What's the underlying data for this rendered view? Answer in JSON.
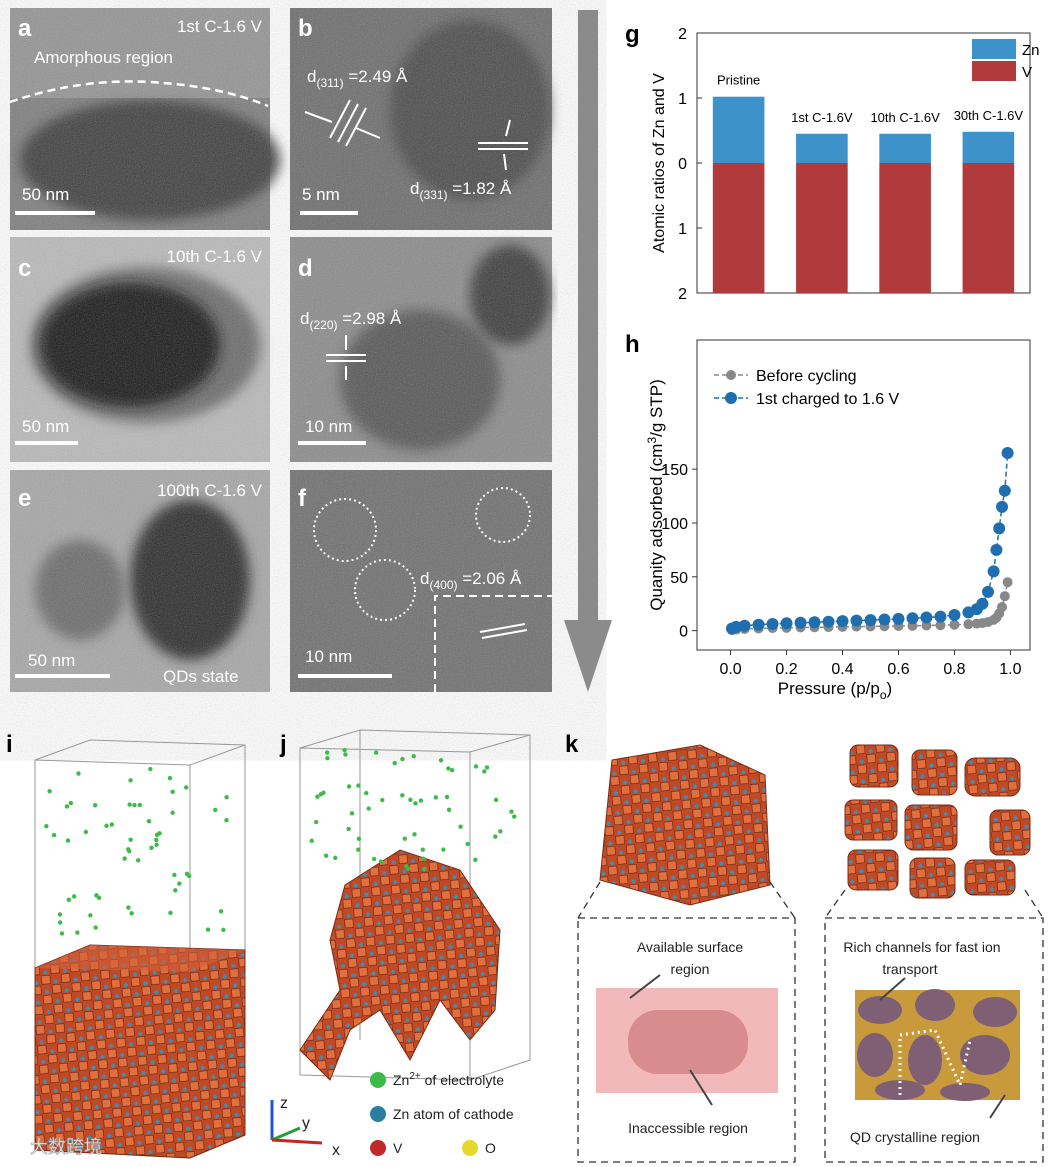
{
  "panels": {
    "a": {
      "label": "a",
      "condition": "1st C-1.6 V",
      "region": "Amorphous region",
      "scale": "50 nm"
    },
    "b": {
      "label": "b",
      "d1": [
        "d",
        "(311)",
        " =2.49 Å"
      ],
      "d2": [
        "d",
        "(331)",
        " =1.82 Å"
      ],
      "scale": "5 nm"
    },
    "c": {
      "label": "c",
      "condition": "10th C-1.6 V",
      "scale": "50 nm"
    },
    "d": {
      "label": "d",
      "d1": [
        "d",
        "(220)",
        " =2.98 Å"
      ],
      "scale": "10 nm"
    },
    "e": {
      "label": "e",
      "condition": "100th C-1.6 V",
      "scale": "50 nm",
      "state": "QDs state"
    },
    "f": {
      "label": "f",
      "d1": [
        "d",
        "(400)",
        " =2.06 Å"
      ],
      "scale": "10 nm"
    },
    "g": {
      "label": "g"
    },
    "h": {
      "label": "h"
    },
    "i": {
      "label": "i"
    },
    "j": {
      "label": "j",
      "legend": [
        [
          "Zn",
          "2+",
          " of electrolyte"
        ],
        "Zn atom of cathode",
        "V",
        "O"
      ],
      "axes": [
        "z",
        "y",
        "x"
      ]
    },
    "k": {
      "label": "k",
      "surface": [
        "Available surface",
        "region"
      ],
      "inaccessible": "Inaccessible region",
      "channels": [
        "Rich channels for fast ion",
        "transport"
      ],
      "qd": "QD crystalline region"
    }
  },
  "watermark": "大数跨境",
  "chart_data": [
    {
      "type": "bar",
      "ylabel": "Atomic ratios  of Zn and V",
      "categories": [
        "Pristine",
        "1st C-1.6V",
        "10th C-1.6V",
        "30th C-1.6V"
      ],
      "series": [
        {
          "name": "Zn",
          "color": "#3d92c9",
          "values": [
            1.02,
            0.45,
            0.45,
            0.48
          ]
        },
        {
          "name": "V",
          "color": "#b13b3c",
          "values": [
            -2,
            -2,
            -2,
            -2
          ]
        }
      ],
      "ylim": [
        -2,
        2
      ],
      "yticks": [
        {
          "value": -2,
          "label": "2"
        },
        {
          "value": -1,
          "label": "1"
        },
        0,
        1,
        2
      ],
      "legend": "upper right"
    },
    {
      "type": "line",
      "xlabel": [
        "Pressure (p/p",
        "o",
        ")"
      ],
      "ylabel": [
        "Quanity adsorbed (cm",
        "3",
        "/g STP)"
      ],
      "x": [
        0.005,
        0.02,
        0.05,
        0.1,
        0.15,
        0.2,
        0.25,
        0.3,
        0.35,
        0.4,
        0.45,
        0.5,
        0.55,
        0.6,
        0.65,
        0.7,
        0.75,
        0.8,
        0.85,
        0.88,
        0.9,
        0.92,
        0.94,
        0.95,
        0.96,
        0.97,
        0.98,
        0.99
      ],
      "series": [
        {
          "name": "Before cycling",
          "color": "#888888",
          "values": [
            0.5,
            1,
            1.5,
            2,
            2.3,
            2.6,
            2.9,
            3.1,
            3.3,
            3.5,
            3.7,
            3.9,
            4.1,
            4.3,
            4.5,
            4.8,
            5,
            5.5,
            6,
            6.5,
            7,
            8,
            10,
            12,
            16,
            22,
            32,
            45
          ]
        },
        {
          "name": "1st charged to 1.6 V",
          "color": "#1f6fb0",
          "values": [
            2,
            3.5,
            4.5,
            5.5,
            6.2,
            6.8,
            7.3,
            7.8,
            8.3,
            8.8,
            9.3,
            9.8,
            10.3,
            10.9,
            11.5,
            12.2,
            13,
            14.5,
            17,
            20,
            25,
            36,
            55,
            75,
            95,
            115,
            130,
            165
          ]
        }
      ],
      "xlim": [
        -0.12,
        1.07
      ],
      "ylim": [
        -18,
        270
      ],
      "xticks": [
        {
          "value": 0,
          "label": "0.0"
        },
        0.2,
        0.4,
        0.6,
        0.8,
        {
          "value": 1,
          "label": "1.0"
        }
      ],
      "yticks": [
        0,
        50,
        100,
        150
      ],
      "legend": "upper left"
    }
  ]
}
